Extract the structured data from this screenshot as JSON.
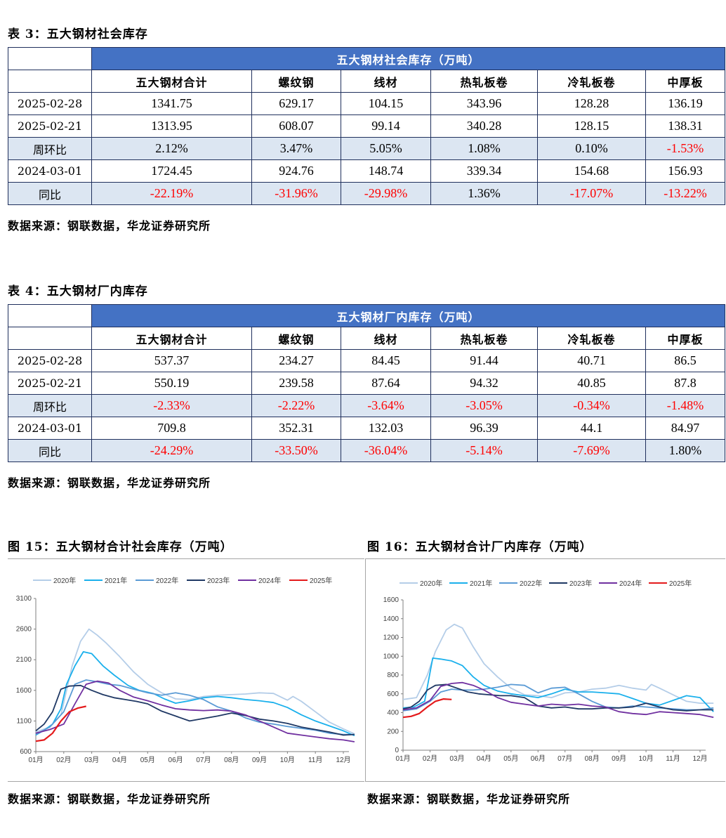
{
  "table3": {
    "caption": "表 3：五大钢材社会库存",
    "title": "五大钢材社会库存（万吨）",
    "columns": [
      "五大钢材合计",
      "螺纹钢",
      "线材",
      "热轧板卷",
      "冷轧板卷",
      "中厚板"
    ],
    "rows": [
      {
        "label": "2025-02-28",
        "values": [
          "1341.75",
          "629.17",
          "104.15",
          "343.96",
          "128.28",
          "136.19"
        ],
        "shade": false
      },
      {
        "label": "2025-02-21",
        "values": [
          "1313.95",
          "608.07",
          "99.14",
          "340.28",
          "128.15",
          "138.31"
        ],
        "shade": false
      },
      {
        "label": "周环比",
        "values": [
          "2.12%",
          "3.47%",
          "5.05%",
          "1.08%",
          "0.10%",
          "-1.53%"
        ],
        "shade": true
      },
      {
        "label": "2024-03-01",
        "values": [
          "1724.45",
          "924.76",
          "148.74",
          "339.34",
          "154.68",
          "156.93"
        ],
        "shade": false
      },
      {
        "label": "同比",
        "values": [
          "-22.19%",
          "-31.96%",
          "-29.98%",
          "1.36%",
          "-17.07%",
          "-13.22%"
        ],
        "shade": true
      }
    ],
    "source": "数据来源：钢联数据，华龙证券研究所"
  },
  "table4": {
    "caption": "表 4：五大钢材厂内库存",
    "title": "五大钢材厂内库存（万吨）",
    "columns": [
      "五大钢材合计",
      "螺纹钢",
      "线材",
      "热轧板卷",
      "冷轧板卷",
      "中厚板"
    ],
    "rows": [
      {
        "label": "2025-02-28",
        "values": [
          "537.37",
          "234.27",
          "84.45",
          "91.44",
          "40.71",
          "86.5"
        ],
        "shade": false
      },
      {
        "label": "2025-02-21",
        "values": [
          "550.19",
          "239.58",
          "87.64",
          "94.32",
          "40.85",
          "87.8"
        ],
        "shade": false
      },
      {
        "label": "周环比",
        "values": [
          "-2.33%",
          "-2.22%",
          "-3.64%",
          "-3.05%",
          "-0.34%",
          "-1.48%"
        ],
        "shade": true
      },
      {
        "label": "2024-03-01",
        "values": [
          "709.8",
          "352.31",
          "132.03",
          "96.39",
          "44.1",
          "84.97"
        ],
        "shade": false
      },
      {
        "label": "同比",
        "values": [
          "-24.29%",
          "-33.50%",
          "-36.04%",
          "-5.14%",
          "-7.69%",
          "1.80%"
        ],
        "shade": true
      }
    ],
    "source": "数据来源：钢联数据，华龙证券研究所"
  },
  "fig15": {
    "caption": "图 15：五大钢材合计社会库存（万吨）",
    "source": "数据来源：钢联数据，华龙证券研究所"
  },
  "fig16": {
    "caption": "图 16：五大钢材合计厂内库存（万吨）",
    "source": "数据来源：钢联数据，华龙证券研究所"
  },
  "chart_data": [
    {
      "type": "line",
      "id": "fig15",
      "x_labels": [
        "01月",
        "02月",
        "03月",
        "04月",
        "05月",
        "06月",
        "07月",
        "08月",
        "09月",
        "10月",
        "11月",
        "12月"
      ],
      "ylim": [
        600,
        3100
      ],
      "yticks": [
        600,
        1100,
        1600,
        2100,
        2600,
        3100
      ],
      "legend": "top",
      "series": [
        {
          "name": "2020年",
          "color": "#b4cde8",
          "x": [
            1,
            1.5,
            1.9,
            2.3,
            2.6,
            2.9,
            3.2,
            3.5,
            4,
            4.5,
            5,
            5.5,
            6,
            6.5,
            7,
            7.5,
            8,
            8.5,
            9,
            9.5,
            10,
            10.2,
            10.5,
            11,
            11.5,
            12,
            12.4
          ],
          "values": [
            920,
            1000,
            1200,
            2000,
            2400,
            2600,
            2500,
            2380,
            2150,
            1900,
            1700,
            1560,
            1460,
            1450,
            1500,
            1520,
            1530,
            1540,
            1560,
            1550,
            1440,
            1500,
            1420,
            1250,
            1080,
            970,
            890
          ]
        },
        {
          "name": "2021年",
          "color": "#1ab0ec",
          "x": [
            1,
            1.3,
            1.6,
            1.9,
            2.1,
            2.4,
            2.7,
            3,
            3.4,
            3.8,
            4.3,
            4.7,
            5.2,
            5.6,
            6,
            6.5,
            7,
            7.5,
            8,
            8.5,
            9,
            9.5,
            10,
            10.5,
            11,
            11.5,
            12,
            12.4
          ],
          "values": [
            870,
            950,
            1050,
            1300,
            1700,
            2000,
            2230,
            2200,
            2000,
            1850,
            1680,
            1600,
            1550,
            1460,
            1390,
            1430,
            1480,
            1500,
            1480,
            1450,
            1430,
            1400,
            1320,
            1200,
            1100,
            1020,
            940,
            860
          ]
        },
        {
          "name": "2022年",
          "color": "#5b9bd5",
          "x": [
            1,
            1.5,
            2,
            2.4,
            2.8,
            3.2,
            3.6,
            4,
            4.5,
            5,
            5.5,
            6,
            6.5,
            7,
            7.5,
            8,
            8.5,
            9,
            9.5,
            10,
            10.5,
            11,
            11.5,
            12,
            12.4
          ],
          "values": [
            880,
            1000,
            1250,
            1700,
            1770,
            1740,
            1700,
            1680,
            1620,
            1560,
            1520,
            1560,
            1520,
            1450,
            1330,
            1260,
            1150,
            1080,
            1050,
            1010,
            980,
            950,
            900,
            880,
            880
          ]
        },
        {
          "name": "2023年",
          "color": "#1f3864",
          "x": [
            1,
            1.3,
            1.6,
            1.9,
            2.2,
            2.6,
            3,
            3.4,
            3.8,
            4.2,
            4.6,
            5,
            5.5,
            6,
            6.5,
            7,
            7.5,
            8,
            8.5,
            9,
            9.5,
            10,
            10.5,
            11,
            11.5,
            12,
            12.4
          ],
          "values": [
            940,
            1050,
            1250,
            1620,
            1670,
            1680,
            1600,
            1530,
            1480,
            1450,
            1420,
            1380,
            1260,
            1180,
            1100,
            1140,
            1180,
            1230,
            1190,
            1130,
            1100,
            1060,
            1000,
            960,
            920,
            870,
            880
          ]
        },
        {
          "name": "2024年",
          "color": "#7030a0",
          "x": [
            1,
            1.5,
            2,
            2.4,
            2.8,
            3.2,
            3.6,
            4,
            4.5,
            5,
            5.5,
            6,
            6.5,
            7,
            7.5,
            8,
            8.5,
            9,
            9.5,
            10,
            10.5,
            11,
            11.5,
            12,
            12.4
          ],
          "values": [
            900,
            960,
            1050,
            1380,
            1700,
            1750,
            1720,
            1600,
            1490,
            1430,
            1360,
            1300,
            1280,
            1270,
            1280,
            1260,
            1200,
            1100,
            1000,
            900,
            870,
            840,
            810,
            790,
            760
          ]
        },
        {
          "name": "2025年",
          "color": "#e41a1c",
          "x": [
            1,
            1.3,
            1.6,
            1.9,
            2.2,
            2.5,
            2.8
          ],
          "values": [
            770,
            790,
            900,
            1100,
            1250,
            1310,
            1340
          ]
        }
      ]
    },
    {
      "type": "line",
      "id": "fig16",
      "x_labels": [
        "01月",
        "02月",
        "03月",
        "04月",
        "05月",
        "06月",
        "07月",
        "08月",
        "09月",
        "10月",
        "11月",
        "12月"
      ],
      "ylim": [
        0,
        1600
      ],
      "yticks": [
        0,
        200,
        400,
        600,
        800,
        1000,
        1200,
        1400,
        1600
      ],
      "legend": "top",
      "series": [
        {
          "name": "2020年",
          "color": "#b4cde8",
          "x": [
            1,
            1.5,
            1.9,
            2.2,
            2.6,
            2.9,
            3.2,
            3.6,
            4,
            4.5,
            5,
            5.5,
            6,
            6.5,
            7,
            7.5,
            8,
            8.5,
            9,
            9.5,
            10,
            10.2,
            10.5,
            11,
            11.5,
            12,
            12.5
          ],
          "values": [
            540,
            560,
            800,
            1050,
            1280,
            1340,
            1300,
            1100,
            920,
            780,
            660,
            590,
            580,
            560,
            610,
            620,
            650,
            660,
            690,
            660,
            640,
            700,
            660,
            590,
            520,
            500,
            500
          ]
        },
        {
          "name": "2021年",
          "color": "#1ab0ec",
          "x": [
            1,
            1.4,
            1.8,
            2.1,
            2.4,
            2.8,
            3.2,
            3.6,
            4,
            4.5,
            5,
            5.5,
            6,
            6.5,
            7,
            7.5,
            8,
            8.5,
            9,
            9.5,
            10,
            10.5,
            11,
            11.5,
            12,
            12.5
          ],
          "values": [
            450,
            460,
            520,
            980,
            970,
            950,
            900,
            780,
            690,
            630,
            600,
            580,
            560,
            600,
            650,
            620,
            620,
            610,
            600,
            550,
            500,
            480,
            530,
            580,
            560,
            410
          ]
        },
        {
          "name": "2022年",
          "color": "#5b9bd5",
          "x": [
            1,
            1.5,
            2,
            2.4,
            2.8,
            3.2,
            3.6,
            4,
            4.5,
            5,
            5.5,
            6,
            6.5,
            7,
            7.5,
            8,
            8.5,
            9,
            9.5,
            10,
            10.5,
            11,
            11.5,
            12,
            12.5
          ],
          "values": [
            420,
            440,
            520,
            620,
            650,
            640,
            640,
            650,
            670,
            700,
            690,
            610,
            660,
            670,
            600,
            520,
            460,
            450,
            470,
            460,
            450,
            440,
            430,
            430,
            450
          ]
        },
        {
          "name": "2023年",
          "color": "#1f3864",
          "x": [
            1,
            1.3,
            1.6,
            1.9,
            2.2,
            2.6,
            3,
            3.4,
            3.8,
            4.2,
            4.6,
            5,
            5.5,
            6,
            6.5,
            7,
            7.5,
            8,
            8.5,
            9,
            9.5,
            10,
            10.5,
            11,
            11.5,
            12,
            12.5
          ],
          "values": [
            440,
            460,
            520,
            640,
            690,
            700,
            660,
            620,
            600,
            590,
            580,
            580,
            560,
            470,
            450,
            460,
            440,
            440,
            450,
            450,
            460,
            500,
            460,
            430,
            420,
            430,
            430
          ]
        },
        {
          "name": "2024年",
          "color": "#7030a0",
          "x": [
            1,
            1.5,
            2,
            2.4,
            2.8,
            3.2,
            3.6,
            4,
            4.5,
            5,
            5.5,
            6,
            6.5,
            7,
            7.5,
            8,
            8.5,
            9,
            9.5,
            10,
            10.5,
            11,
            11.5,
            12,
            12.5
          ],
          "values": [
            430,
            450,
            530,
            680,
            710,
            720,
            690,
            640,
            560,
            510,
            490,
            470,
            490,
            480,
            490,
            470,
            460,
            410,
            390,
            380,
            410,
            400,
            390,
            380,
            350
          ]
        },
        {
          "name": "2025年",
          "color": "#e41a1c",
          "x": [
            1,
            1.3,
            1.6,
            1.9,
            2.2,
            2.5,
            2.8
          ],
          "values": [
            350,
            360,
            390,
            460,
            520,
            545,
            540
          ]
        }
      ]
    }
  ]
}
